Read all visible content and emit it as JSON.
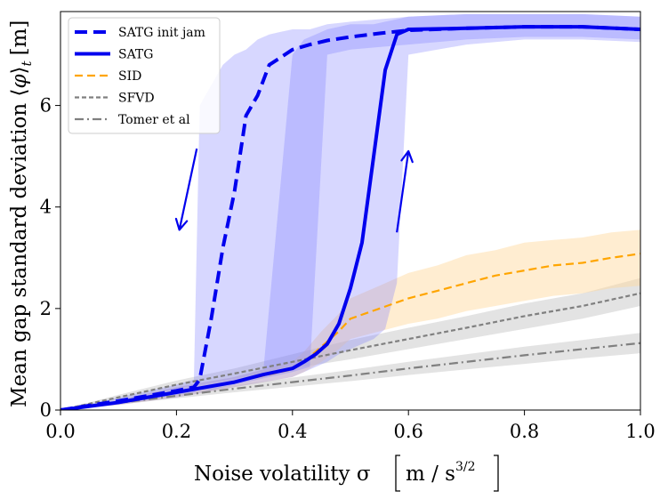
{
  "chart_data": {
    "type": "line",
    "xlabel": "Noise volatility σ",
    "xlabel_units_prefix": "m / s",
    "xlabel_units_exp": "3/2",
    "ylabel": "Mean gap standard deviation ⟨φ⟩t [m]",
    "ylabel_main": "Mean gap standard deviation ⟨",
    "ylabel_phi": "φ",
    "ylabel_close": "⟩",
    "ylabel_sub": "t",
    "ylabel_units": "[m]",
    "xlim": [
      0.0,
      1.0
    ],
    "ylim": [
      0.0,
      7.85
    ],
    "xticks": [
      0.0,
      0.2,
      0.4,
      0.6,
      0.8,
      1.0
    ],
    "xtick_labels": [
      "0.0",
      "0.2",
      "0.4",
      "0.6",
      "0.8",
      "1.0"
    ],
    "yticks": [
      0,
      2,
      4,
      6
    ],
    "ytick_labels": [
      "0",
      "2",
      "4",
      "6"
    ],
    "legend_position": "top-left",
    "colors": {
      "satg": "#0000ee",
      "sid": "#ffa500",
      "sfvd": "#808080",
      "tomer": "#808080",
      "band_blue": "#7b7bff",
      "band_orange": "#ffd89a",
      "band_gray": "#c8c8c8"
    },
    "series": [
      {
        "name": "SATG init jam",
        "key": "satg_init",
        "style": "dashed-thick",
        "x": [
          0.0,
          0.1,
          0.2,
          0.23,
          0.24,
          0.26,
          0.28,
          0.3,
          0.32,
          0.34,
          0.36,
          0.38,
          0.4,
          0.43,
          0.46,
          0.5,
          0.55,
          0.6,
          0.7,
          0.8,
          0.9,
          1.0
        ],
        "y": [
          0.0,
          0.18,
          0.38,
          0.45,
          0.6,
          1.8,
          3.2,
          4.3,
          5.8,
          6.2,
          6.8,
          6.95,
          7.1,
          7.2,
          7.28,
          7.35,
          7.42,
          7.48,
          7.52,
          7.55,
          7.55,
          7.5
        ],
        "band_low": [
          0.0,
          0.12,
          0.3,
          0.35,
          0.4,
          0.4,
          0.45,
          0.5,
          0.55,
          0.6,
          0.65,
          0.7,
          0.75,
          0.85,
          7.0,
          7.1,
          7.15,
          7.2,
          7.3,
          7.35,
          7.35,
          7.3
        ],
        "band_high": [
          0.0,
          0.25,
          0.5,
          0.6,
          6.0,
          6.4,
          6.8,
          7.0,
          7.1,
          7.3,
          7.4,
          7.45,
          7.5,
          7.5,
          7.6,
          7.65,
          7.7,
          7.75,
          7.8,
          7.8,
          7.8,
          7.75
        ]
      },
      {
        "name": "SATG",
        "key": "satg",
        "style": "solid-thick",
        "x": [
          0.0,
          0.1,
          0.2,
          0.3,
          0.35,
          0.4,
          0.42,
          0.44,
          0.46,
          0.48,
          0.5,
          0.52,
          0.54,
          0.56,
          0.58,
          0.6,
          0.7,
          0.8,
          0.9,
          1.0
        ],
        "y": [
          0.0,
          0.15,
          0.35,
          0.55,
          0.7,
          0.82,
          0.95,
          1.1,
          1.3,
          1.7,
          2.4,
          3.3,
          5.0,
          6.7,
          7.4,
          7.5,
          7.52,
          7.55,
          7.55,
          7.5
        ],
        "band_low": [
          0.0,
          0.1,
          0.25,
          0.45,
          0.55,
          0.65,
          0.75,
          0.85,
          0.95,
          1.1,
          1.2,
          1.3,
          1.4,
          1.6,
          2.5,
          7.0,
          7.2,
          7.3,
          7.3,
          7.25
        ],
        "band_high": [
          0.0,
          0.2,
          0.45,
          0.65,
          0.8,
          7.0,
          7.3,
          7.4,
          7.5,
          7.55,
          7.6,
          7.6,
          7.6,
          7.65,
          7.7,
          7.75,
          7.8,
          7.8,
          7.8,
          7.75
        ]
      },
      {
        "name": "SID",
        "key": "sid",
        "style": "dashed",
        "x": [
          0.0,
          0.1,
          0.2,
          0.3,
          0.35,
          0.4,
          0.42,
          0.45,
          0.48,
          0.5,
          0.55,
          0.6,
          0.65,
          0.7,
          0.75,
          0.8,
          0.85,
          0.9,
          0.95,
          1.0
        ],
        "y": [
          0.0,
          0.15,
          0.35,
          0.55,
          0.68,
          0.8,
          0.95,
          1.25,
          1.55,
          1.8,
          2.0,
          2.2,
          2.35,
          2.5,
          2.65,
          2.75,
          2.85,
          2.9,
          3.0,
          3.08
        ],
        "band_low": [
          0.0,
          0.1,
          0.25,
          0.45,
          0.55,
          0.65,
          0.75,
          0.95,
          1.2,
          1.4,
          1.55,
          1.7,
          1.8,
          1.95,
          2.05,
          2.15,
          2.25,
          2.3,
          2.4,
          2.45
        ],
        "band_high": [
          0.0,
          0.2,
          0.45,
          0.65,
          0.8,
          0.95,
          1.15,
          1.55,
          1.9,
          2.2,
          2.45,
          2.7,
          2.85,
          3.05,
          3.15,
          3.3,
          3.35,
          3.4,
          3.5,
          3.55
        ]
      },
      {
        "name": "SFVD",
        "key": "sfvd",
        "style": "dashed-gray",
        "x": [
          0.0,
          0.1,
          0.2,
          0.3,
          0.4,
          0.5,
          0.6,
          0.7,
          0.8,
          0.9,
          1.0
        ],
        "y": [
          0.0,
          0.25,
          0.5,
          0.72,
          0.95,
          1.18,
          1.4,
          1.62,
          1.85,
          2.05,
          2.3
        ],
        "band_low": [
          0.0,
          0.2,
          0.42,
          0.62,
          0.82,
          1.0,
          1.2,
          1.4,
          1.6,
          1.8,
          2.05
        ],
        "band_high": [
          0.0,
          0.3,
          0.58,
          0.82,
          1.1,
          1.38,
          1.62,
          1.85,
          2.1,
          2.3,
          2.6
        ]
      },
      {
        "name": "Tomer et al",
        "key": "tomer",
        "style": "dashdot-gray",
        "x": [
          0.0,
          0.1,
          0.2,
          0.3,
          0.4,
          0.5,
          0.6,
          0.7,
          0.8,
          0.9,
          1.0
        ],
        "y": [
          0.0,
          0.14,
          0.28,
          0.42,
          0.55,
          0.68,
          0.82,
          0.95,
          1.08,
          1.2,
          1.32
        ],
        "band_low": [
          0.0,
          0.11,
          0.23,
          0.35,
          0.46,
          0.57,
          0.69,
          0.8,
          0.91,
          1.02,
          1.12
        ],
        "band_high": [
          0.0,
          0.17,
          0.33,
          0.49,
          0.64,
          0.79,
          0.95,
          1.1,
          1.25,
          1.38,
          1.52
        ]
      }
    ],
    "annotations": [
      {
        "type": "arrow",
        "direction": "down",
        "from": [
          0.235,
          5.15
        ],
        "to": [
          0.205,
          3.55
        ],
        "color": "#0000ee"
      },
      {
        "type": "arrow",
        "direction": "up",
        "from": [
          0.58,
          3.5
        ],
        "to": [
          0.6,
          5.1
        ],
        "color": "#0000ee"
      }
    ]
  }
}
